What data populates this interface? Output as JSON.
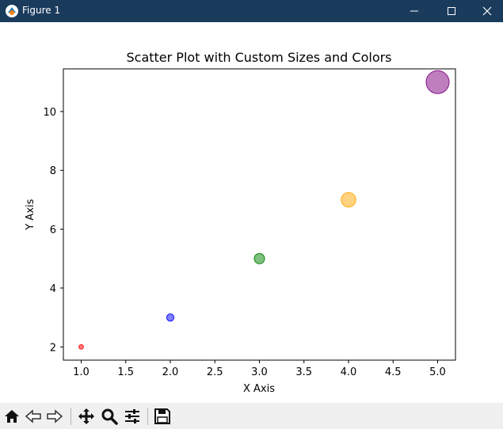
{
  "window": {
    "title": "Figure 1",
    "controls": [
      "minimize-icon",
      "maximize-icon",
      "close-icon"
    ]
  },
  "toolbar": {
    "buttons": [
      "home-icon",
      "back-icon",
      "forward-icon",
      "pan-icon",
      "zoom-icon",
      "configure-subplots-icon",
      "save-icon"
    ]
  },
  "chart_data": {
    "type": "scatter",
    "title": "Scatter Plot with Custom Sizes and Colors",
    "xlabel": "X Axis",
    "ylabel": "Y Axis",
    "xlim": [
      0.8,
      5.2
    ],
    "ylim": [
      1.55,
      11.45
    ],
    "xticks": [
      1.0,
      1.5,
      2.0,
      2.5,
      3.0,
      3.5,
      4.0,
      4.5,
      5.0
    ],
    "xtick_labels": [
      "1.0",
      "1.5",
      "2.0",
      "2.5",
      "3.0",
      "3.5",
      "4.0",
      "4.5",
      "5.0"
    ],
    "yticks": [
      2,
      4,
      6,
      8,
      10
    ],
    "ytick_labels": [
      "2",
      "4",
      "6",
      "8",
      "10"
    ],
    "grid": false,
    "alpha": 0.5,
    "points": [
      {
        "x": 1,
        "y": 2,
        "size": 20,
        "color": "#ff0000"
      },
      {
        "x": 2,
        "y": 3,
        "size": 50,
        "color": "#0000ff"
      },
      {
        "x": 3,
        "y": 5,
        "size": 100,
        "color": "#008000"
      },
      {
        "x": 4,
        "y": 7,
        "size": 200,
        "color": "#ffa500"
      },
      {
        "x": 5,
        "y": 11,
        "size": 500,
        "color": "#800080"
      }
    ]
  }
}
